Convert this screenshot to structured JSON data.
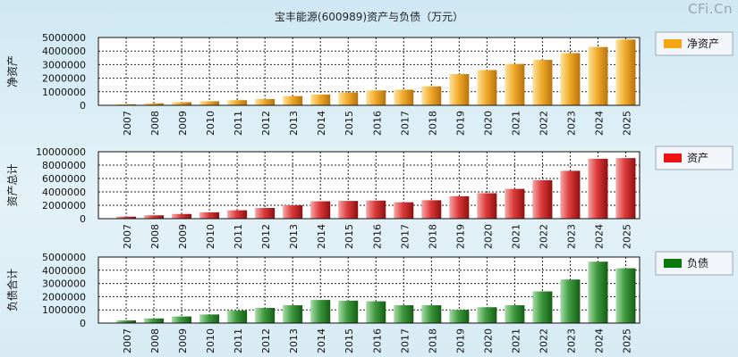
{
  "header": {
    "title": "宝丰能源(600989)资产与负债（万元）",
    "watermark": "CFi.Cn"
  },
  "chart_data": [
    {
      "type": "bar",
      "ylabel": "净资产",
      "legend": "净资产",
      "legend_color": "#f3a512",
      "bar_colors": [
        "#fde3a0",
        "#f2ac2c",
        "#b8730c"
      ],
      "categories": [
        "2007",
        "2008",
        "2009",
        "2010",
        "2011",
        "2012",
        "2013",
        "2014",
        "2015",
        "2016",
        "2017",
        "2018",
        "2019",
        "2020",
        "2021",
        "2022",
        "2023",
        "2024",
        "2025"
      ],
      "values": [
        80000,
        150000,
        230000,
        300000,
        380000,
        460000,
        680000,
        800000,
        950000,
        1100000,
        1150000,
        1400000,
        2300000,
        2600000,
        3050000,
        3350000,
        3850000,
        4300000,
        4850000
      ],
      "ylim": [
        0,
        5000000
      ],
      "ticks": [
        0,
        1000000,
        2000000,
        3000000,
        4000000,
        5000000
      ],
      "tick_labels": [
        "0",
        "1000000",
        "2000000",
        "3000000",
        "4000000",
        "5000000"
      ]
    },
    {
      "type": "bar",
      "ylabel": "资产总计",
      "legend": "资产",
      "legend_color": "#ee1111",
      "bar_colors": [
        "#f6a7a7",
        "#dd3b3b",
        "#8f1010"
      ],
      "categories": [
        "2007",
        "2008",
        "2009",
        "2010",
        "2011",
        "2012",
        "2013",
        "2014",
        "2015",
        "2016",
        "2017",
        "2018",
        "2019",
        "2020",
        "2021",
        "2022",
        "2023",
        "2024",
        "2025"
      ],
      "values": [
        300000,
        500000,
        700000,
        950000,
        1250000,
        1600000,
        2000000,
        2600000,
        2650000,
        2700000,
        2450000,
        2750000,
        3350000,
        3800000,
        4450000,
        5750000,
        7150000,
        8950000,
        9050000
      ],
      "ylim": [
        0,
        10000000
      ],
      "ticks": [
        0,
        2000000,
        4000000,
        6000000,
        8000000,
        10000000
      ],
      "tick_labels": [
        "0",
        "2000000",
        "4000000",
        "6000000",
        "8000000",
        "10000000"
      ]
    },
    {
      "type": "bar",
      "ylabel": "负债合计",
      "legend": "负债",
      "legend_color": "#0a7a0a",
      "bar_colors": [
        "#a8dca8",
        "#3f9a3f",
        "#145e14"
      ],
      "categories": [
        "2007",
        "2008",
        "2009",
        "2010",
        "2011",
        "2012",
        "2013",
        "2014",
        "2015",
        "2016",
        "2017",
        "2018",
        "2019",
        "2020",
        "2021",
        "2022",
        "2023",
        "2024",
        "2025"
      ],
      "values": [
        200000,
        350000,
        500000,
        650000,
        950000,
        1150000,
        1350000,
        1750000,
        1700000,
        1650000,
        1350000,
        1350000,
        1000000,
        1200000,
        1350000,
        2400000,
        3300000,
        4650000,
        4150000
      ],
      "ylim": [
        0,
        5000000
      ],
      "ticks": [
        0,
        1000000,
        2000000,
        3000000,
        4000000,
        5000000
      ],
      "tick_labels": [
        "0",
        "1000000",
        "2000000",
        "3000000",
        "4000000",
        "5000000"
      ]
    }
  ]
}
